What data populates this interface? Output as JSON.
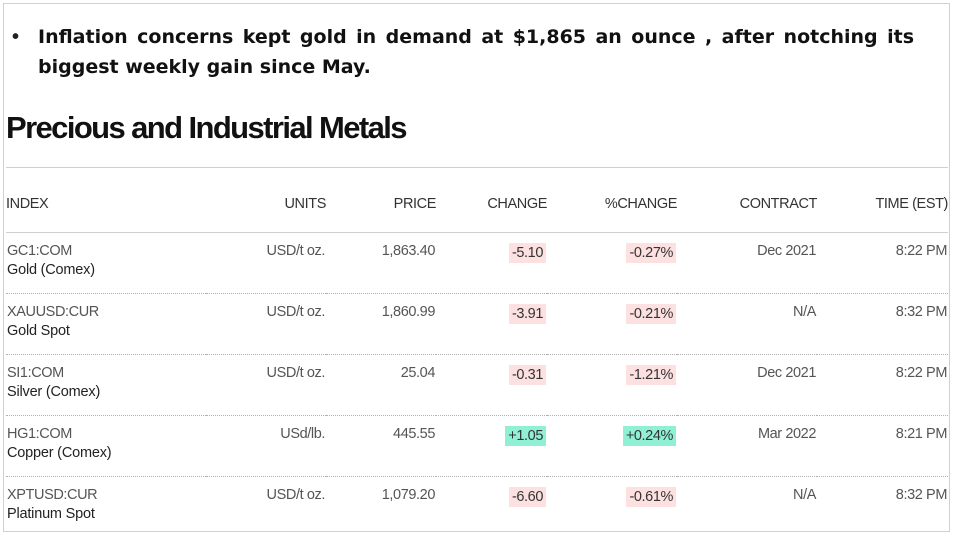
{
  "bullet": {
    "symbol": "•",
    "text": "Inflation concerns kept gold in demand at $1,865 an ounce , after notching its biggest weekly gain since May."
  },
  "section_title": "Precious and Industrial Metals",
  "table": {
    "headers": {
      "index": "INDEX",
      "units": "UNITS",
      "price": "PRICE",
      "change": "CHANGE",
      "pct_change": "%CHANGE",
      "contract": "CONTRACT",
      "time": "TIME (EST)"
    },
    "rows": [
      {
        "ticker": "GC1:COM",
        "name": "Gold (Comex)",
        "units": "USD/t oz.",
        "price": "1,863.40",
        "change": "-5.10",
        "pct_change": "-0.27%",
        "contract": "Dec 2021",
        "time": "8:22 PM"
      },
      {
        "ticker": "XAUUSD:CUR",
        "name": "Gold Spot",
        "units": "USD/t oz.",
        "price": "1,860.99",
        "change": "-3.91",
        "pct_change": "-0.21%",
        "contract": "N/A",
        "time": "8:32 PM"
      },
      {
        "ticker": "SI1:COM",
        "name": "Silver (Comex)",
        "units": "USD/t oz.",
        "price": "25.04",
        "change": "-0.31",
        "pct_change": "-1.21%",
        "contract": "Dec 2021",
        "time": "8:22 PM"
      },
      {
        "ticker": "HG1:COM",
        "name": "Copper (Comex)",
        "units": "USd/lb.",
        "price": "445.55",
        "change": "+1.05",
        "pct_change": "+0.24%",
        "contract": "Mar 2022",
        "time": "8:21 PM"
      },
      {
        "ticker": "XPTUSD:CUR",
        "name": "Platinum Spot",
        "units": "USD/t oz.",
        "price": "1,079.20",
        "change": "-6.60",
        "pct_change": "-0.61%",
        "contract": "N/A",
        "time": "8:32 PM"
      }
    ]
  },
  "colors": {
    "negative_bg": "#fde0e0",
    "positive_bg": "#8ff0d4"
  }
}
